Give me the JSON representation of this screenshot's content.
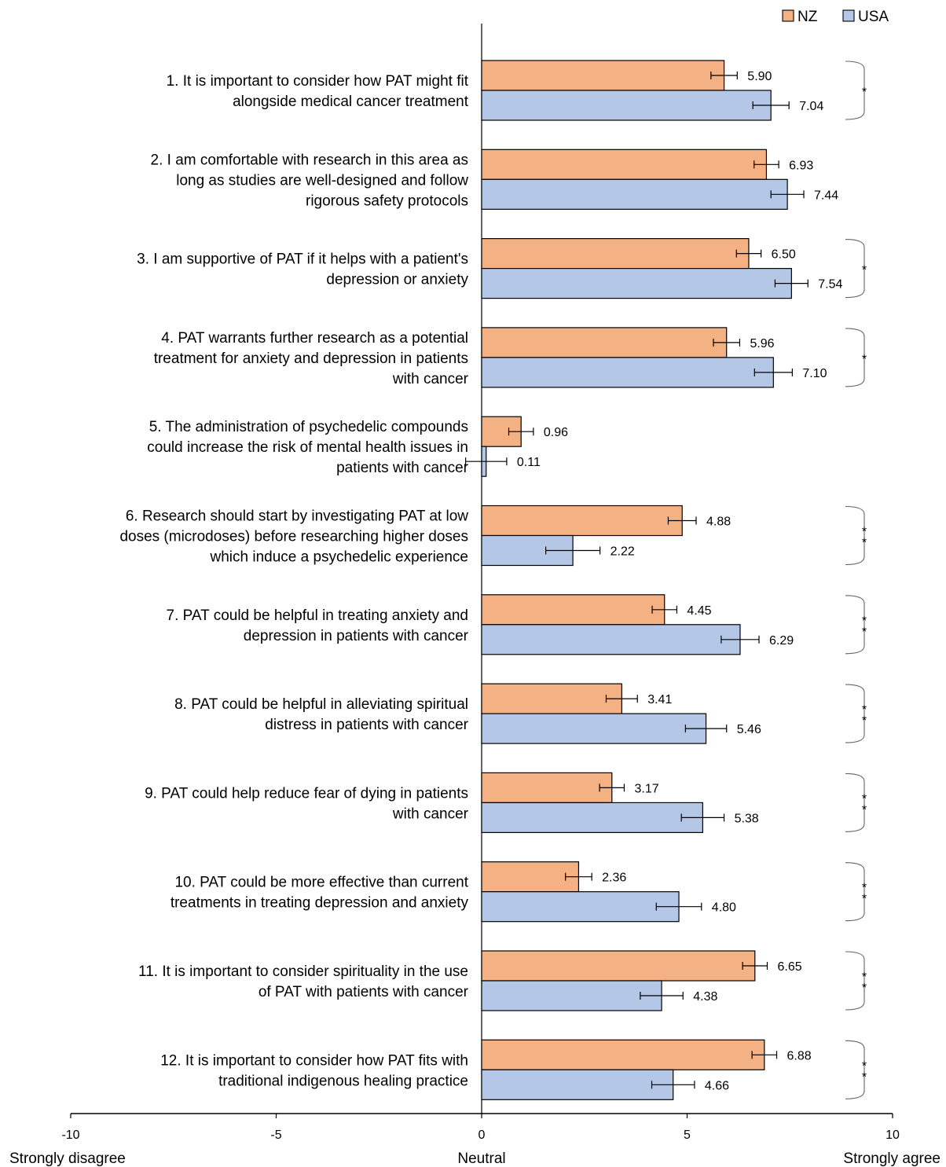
{
  "chart_data": {
    "type": "bar",
    "orientation": "horizontal",
    "xlim": [
      -10,
      10
    ],
    "xticks": [
      -10,
      -5,
      0,
      5,
      10
    ],
    "x_anchor_labels": {
      "left": "Strongly disagree",
      "center": "Neutral",
      "right": "Strongly agree"
    },
    "legend": {
      "placement": "top-right"
    },
    "series": [
      {
        "name": "NZ",
        "color": "#F4B183",
        "values": [
          5.9,
          6.93,
          6.5,
          5.96,
          0.96,
          4.88,
          4.45,
          3.41,
          3.17,
          2.36,
          6.65,
          6.88
        ],
        "errors": [
          0.32,
          0.3,
          0.3,
          0.32,
          0.3,
          0.34,
          0.3,
          0.38,
          0.3,
          0.32,
          0.3,
          0.3
        ]
      },
      {
        "name": "USA",
        "color": "#B4C7E7",
        "values": [
          7.04,
          7.44,
          7.54,
          7.1,
          0.11,
          2.22,
          6.29,
          5.46,
          5.38,
          4.8,
          4.38,
          4.66
        ],
        "errors": [
          0.44,
          0.4,
          0.4,
          0.46,
          0.5,
          0.66,
          0.46,
          0.5,
          0.52,
          0.55,
          0.52,
          0.52
        ]
      }
    ],
    "items": [
      {
        "lines": [
          "1. It is important to consider how PAT might fit",
          "alongside medical cancer treatment"
        ],
        "significance": "*"
      },
      {
        "lines": [
          "2. I am comfortable with research in this area as",
          "long as studies are well-designed and follow",
          "rigorous safety protocols"
        ],
        "significance": ""
      },
      {
        "lines": [
          "3. I am supportive of PAT if it helps with a patient's",
          "depression or anxiety"
        ],
        "significance": "*"
      },
      {
        "lines": [
          "4. PAT warrants further research as a potential",
          "treatment for anxiety and depression in patients",
          "with cancer"
        ],
        "significance": "*"
      },
      {
        "lines": [
          "5. The administration of psychedelic compounds",
          "could increase the risk of mental health issues in",
          "patients with cancer"
        ],
        "significance": ""
      },
      {
        "lines": [
          "6. Research should start by investigating PAT at low",
          "doses (microdoses) before researching higher doses",
          "which induce a psychedelic experience"
        ],
        "significance": "**"
      },
      {
        "lines": [
          "7. PAT could be helpful in treating anxiety and",
          "depression in patients with cancer"
        ],
        "significance": "**"
      },
      {
        "lines": [
          "8. PAT could be helpful in alleviating spiritual",
          "distress in patients with cancer"
        ],
        "significance": "**"
      },
      {
        "lines": [
          "9. PAT could help reduce fear of dying in patients",
          "with cancer"
        ],
        "significance": "**"
      },
      {
        "lines": [
          "10. PAT could be more effective than current",
          "treatments in treating depression and anxiety"
        ],
        "significance": "**"
      },
      {
        "lines": [
          "11. It is important to consider spirituality in the use",
          "of PAT with patients with cancer"
        ],
        "significance": "**"
      },
      {
        "lines": [
          "12. It is important to consider how PAT fits with",
          "traditional indigenous healing practice"
        ],
        "significance": "**"
      }
    ]
  }
}
